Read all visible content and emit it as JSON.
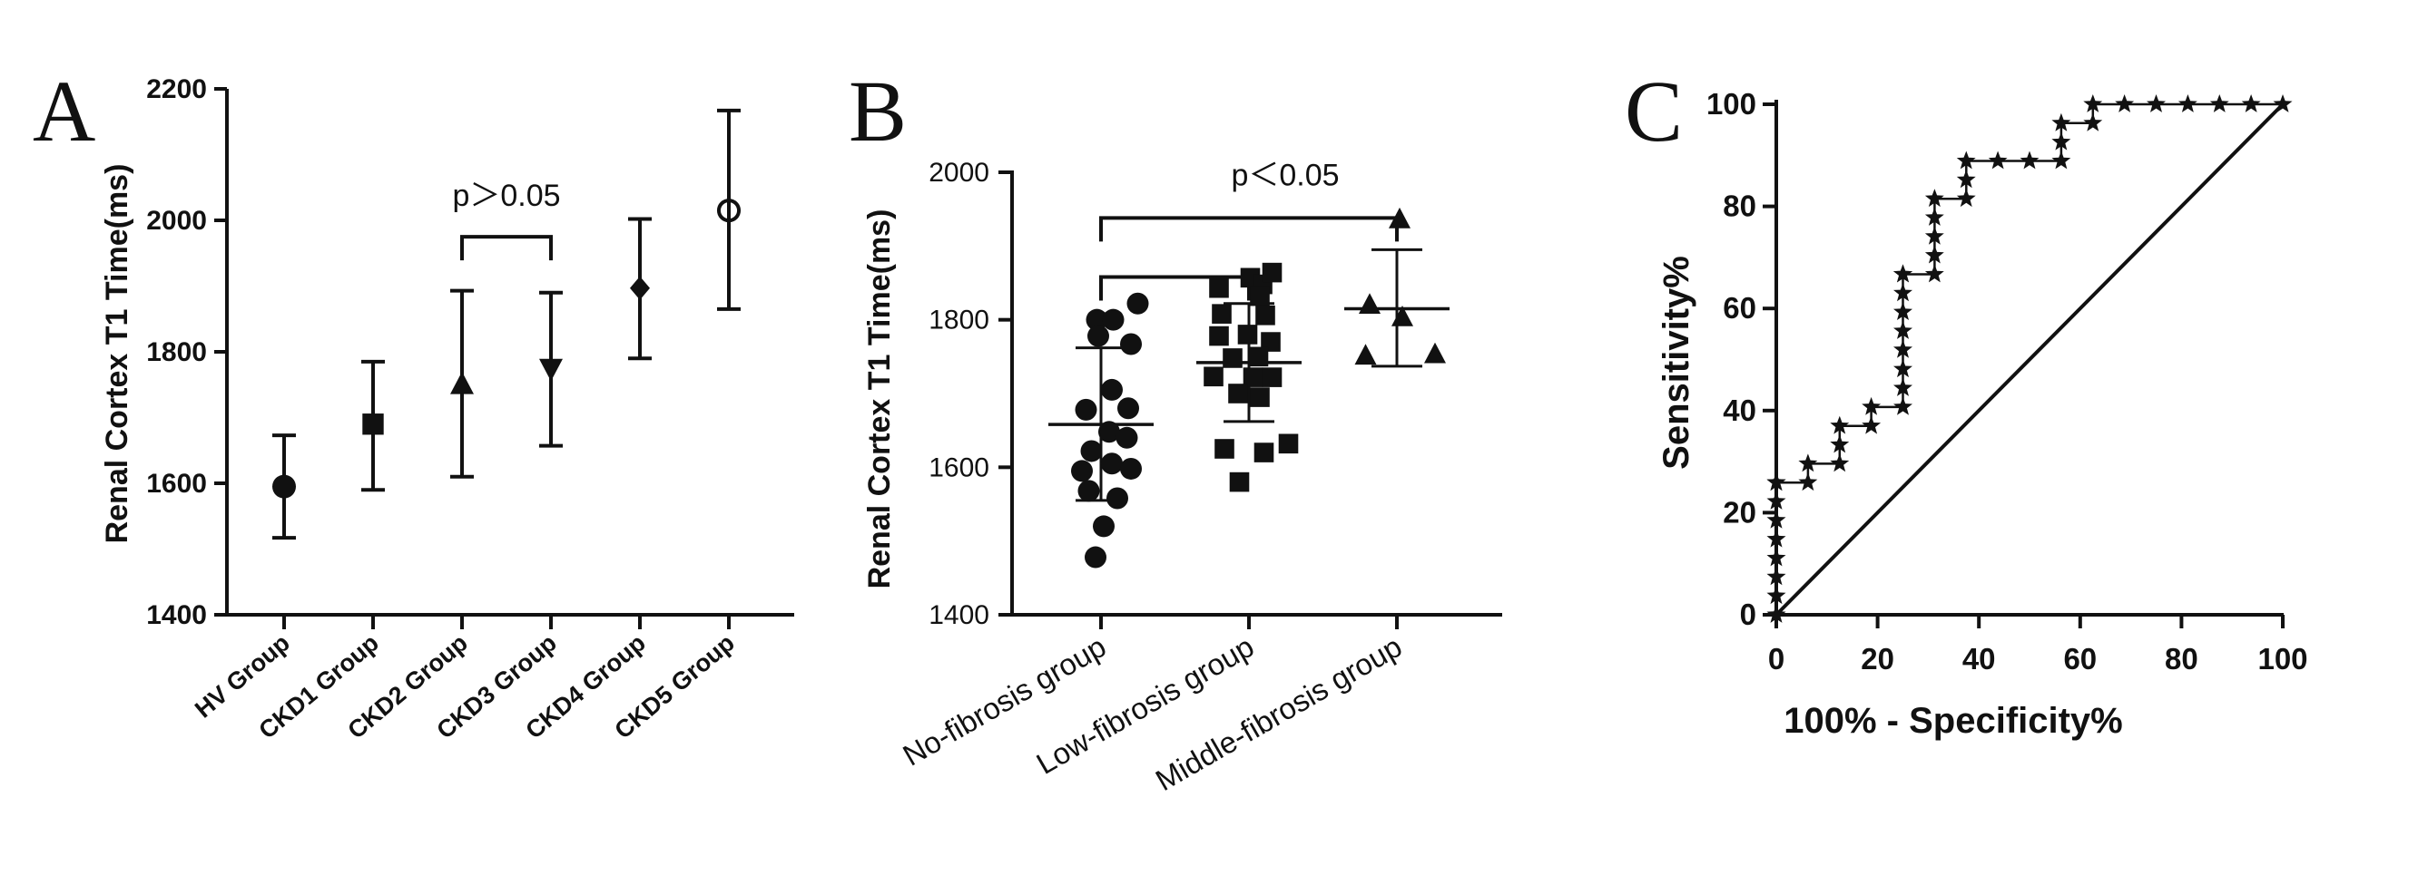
{
  "panels": {
    "a": {
      "letter": "A"
    },
    "b": {
      "letter": "B"
    },
    "c": {
      "letter": "C"
    }
  },
  "chart_data": [
    {
      "panel": "A",
      "type": "scatter",
      "chart_subtype": "mean with error bars",
      "ylabel": "Renal Cortex T1 Time(ms)",
      "xlabel": "",
      "ylim": [
        1400,
        2200
      ],
      "yticks": [
        1400,
        1600,
        1800,
        2000,
        2200
      ],
      "categories": [
        "HV  Group",
        "CKD1 Group",
        "CKD2 Group",
        "CKD3 Group",
        "CKD4 Group",
        "CKD5 Group"
      ],
      "markers": [
        "circle",
        "square",
        "triangle-up",
        "triangle-down",
        "diamond",
        "circle-open"
      ],
      "values": [
        1595,
        1690,
        1750,
        1775,
        1897,
        2015
      ],
      "error_low": [
        1517,
        1590,
        1610,
        1657,
        1790,
        1865
      ],
      "error_high": [
        1673,
        1785,
        1893,
        1890,
        2002,
        2167
      ],
      "annotation": {
        "text": "p＞0.05",
        "from_category": 2,
        "to_category": 3,
        "bracket_y": 1975
      },
      "grid": false
    },
    {
      "panel": "B",
      "type": "scatter",
      "chart_subtype": "dot plot with mean and SD",
      "ylabel": "Renal Cortex T1 Time(ms)",
      "xlabel": "",
      "ylim": [
        1400,
        2000
      ],
      "yticks": [
        1400,
        1600,
        1800,
        2000
      ],
      "categories": [
        "No-fibrosis group",
        "Low-fibrosis group",
        "Middle-fibrosis group"
      ],
      "markers": [
        "circle",
        "square",
        "triangle-up"
      ],
      "points": [
        [
          [
            -0.03,
            1800
          ],
          [
            0.09,
            1800
          ],
          [
            0.27,
            1822
          ],
          [
            -0.02,
            1778
          ],
          [
            0.22,
            1767
          ],
          [
            0.08,
            1705
          ],
          [
            -0.11,
            1678
          ],
          [
            0.2,
            1680
          ],
          [
            0.06,
            1648
          ],
          [
            0.19,
            1640
          ],
          [
            -0.07,
            1622
          ],
          [
            0.08,
            1605
          ],
          [
            -0.14,
            1595
          ],
          [
            0.22,
            1598
          ],
          [
            -0.09,
            1568
          ],
          [
            0.12,
            1558
          ],
          [
            0.02,
            1520
          ],
          [
            -0.04,
            1478
          ]
        ],
        [
          [
            -0.22,
            1843
          ],
          [
            0.01,
            1857
          ],
          [
            0.1,
            1848
          ],
          [
            0.17,
            1864
          ],
          [
            0.08,
            1832
          ],
          [
            -0.2,
            1808
          ],
          [
            0.12,
            1806
          ],
          [
            -0.22,
            1778
          ],
          [
            -0.01,
            1780
          ],
          [
            0.16,
            1770
          ],
          [
            -0.12,
            1748
          ],
          [
            0.07,
            1750
          ],
          [
            -0.26,
            1723
          ],
          [
            0.03,
            1722
          ],
          [
            0.17,
            1722
          ],
          [
            -0.08,
            1700
          ],
          [
            0.08,
            1695
          ],
          [
            -0.18,
            1625
          ],
          [
            0.11,
            1620
          ],
          [
            0.29,
            1632
          ],
          [
            -0.07,
            1580
          ]
        ],
        [
          [
            0.02,
            1936
          ],
          [
            -0.2,
            1820
          ],
          [
            0.04,
            1803
          ],
          [
            -0.23,
            1751
          ],
          [
            0.28,
            1753
          ]
        ]
      ],
      "means": [
        1658,
        1742,
        1815
      ],
      "sd_low": [
        1555,
        1662,
        1737
      ],
      "sd_high": [
        1762,
        1822,
        1895
      ],
      "annotations": [
        {
          "text": "",
          "from_category": 0,
          "to_category": 1,
          "bracket_y": 1858
        },
        {
          "text": "p＜0.05",
          "from_category": 0,
          "to_category": 2,
          "bracket_y": 1938
        }
      ],
      "grid": false
    },
    {
      "panel": "C",
      "type": "line",
      "chart_subtype": "ROC curve",
      "xlabel": "100% - Specificity%",
      "ylabel": "Sensitivity%",
      "xlim": [
        0,
        100
      ],
      "ylim": [
        0,
        100
      ],
      "xticks": [
        0,
        20,
        40,
        60,
        80,
        100
      ],
      "yticks": [
        0,
        20,
        40,
        60,
        80,
        100
      ],
      "series": [
        {
          "marker": "star",
          "x": [
            0,
            0,
            0,
            0,
            0,
            0,
            0,
            0,
            0,
            6.25,
            6.25,
            12.5,
            12.5,
            12.5,
            18.75,
            18.75,
            25,
            25,
            25,
            25,
            25,
            25,
            25,
            25,
            25,
            31.25,
            31.25,
            31.25,
            31.25,
            31.25,
            37.5,
            37.5,
            37.5,
            43.75,
            50,
            56.25,
            56.25,
            56.25,
            62.5,
            62.5,
            68.75,
            75,
            81.25,
            87.5,
            93.75,
            100
          ],
          "y": [
            0,
            3.7,
            7.4,
            11.1,
            14.8,
            18.5,
            22.2,
            25.9,
            25.9,
            25.9,
            29.6,
            29.6,
            33.3,
            37.0,
            37.0,
            40.7,
            40.7,
            44.4,
            48.1,
            51.9,
            55.6,
            59.3,
            63.0,
            66.7,
            66.7,
            66.7,
            70.4,
            74.1,
            77.8,
            81.5,
            81.5,
            85.2,
            88.9,
            88.9,
            88.9,
            88.9,
            92.6,
            96.3,
            96.3,
            100,
            100,
            100,
            100,
            100,
            100,
            100
          ]
        },
        {
          "marker": "none",
          "x": [
            0,
            100
          ],
          "y": [
            0,
            100
          ]
        }
      ],
      "grid": false
    }
  ]
}
